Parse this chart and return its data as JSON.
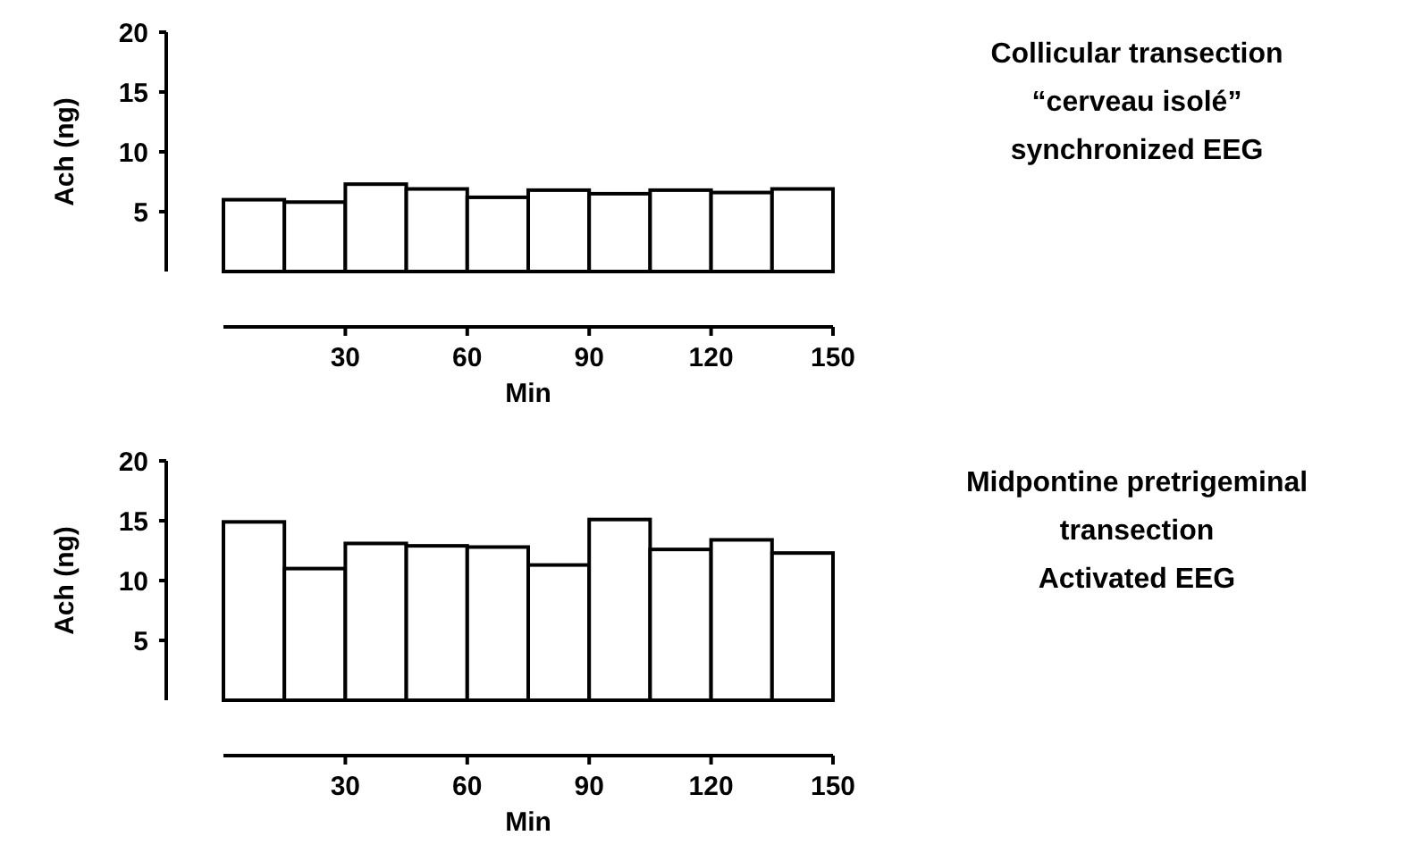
{
  "chart_data": [
    {
      "type": "histogram",
      "annotations": [
        "Collicular transection",
        "“cerveau isolé”",
        "synchronized EEG"
      ],
      "xlabel": "Min",
      "ylabel": "Ach (ng)",
      "bins": [
        0,
        15,
        30,
        45,
        60,
        75,
        90,
        105,
        120,
        135,
        150
      ],
      "values": [
        6.0,
        5.8,
        7.3,
        6.9,
        6.2,
        6.8,
        6.5,
        6.8,
        6.6,
        6.9
      ],
      "color": "#ffffff",
      "xlim": [
        0,
        150
      ],
      "xticks": [
        30,
        60,
        90,
        120,
        150
      ],
      "ylim": [
        0,
        20
      ],
      "yticks": [
        5,
        10,
        15,
        20
      ]
    },
    {
      "type": "histogram",
      "annotations": [
        "Midpontine pretrigeminal",
        "transection",
        "Activated EEG"
      ],
      "xlabel": "Min",
      "ylabel": "Ach (ng)",
      "bins": [
        0,
        15,
        30,
        45,
        60,
        75,
        90,
        105,
        120,
        135,
        150
      ],
      "values": [
        14.9,
        11.0,
        13.1,
        12.9,
        12.8,
        11.3,
        15.1,
        12.6,
        13.4,
        12.3
      ],
      "color": "#ffffff",
      "xlim": [
        0,
        150
      ],
      "xticks": [
        30,
        60,
        90,
        120,
        150
      ],
      "ylim": [
        0,
        20
      ],
      "yticks": [
        5,
        10,
        15,
        20
      ]
    }
  ]
}
